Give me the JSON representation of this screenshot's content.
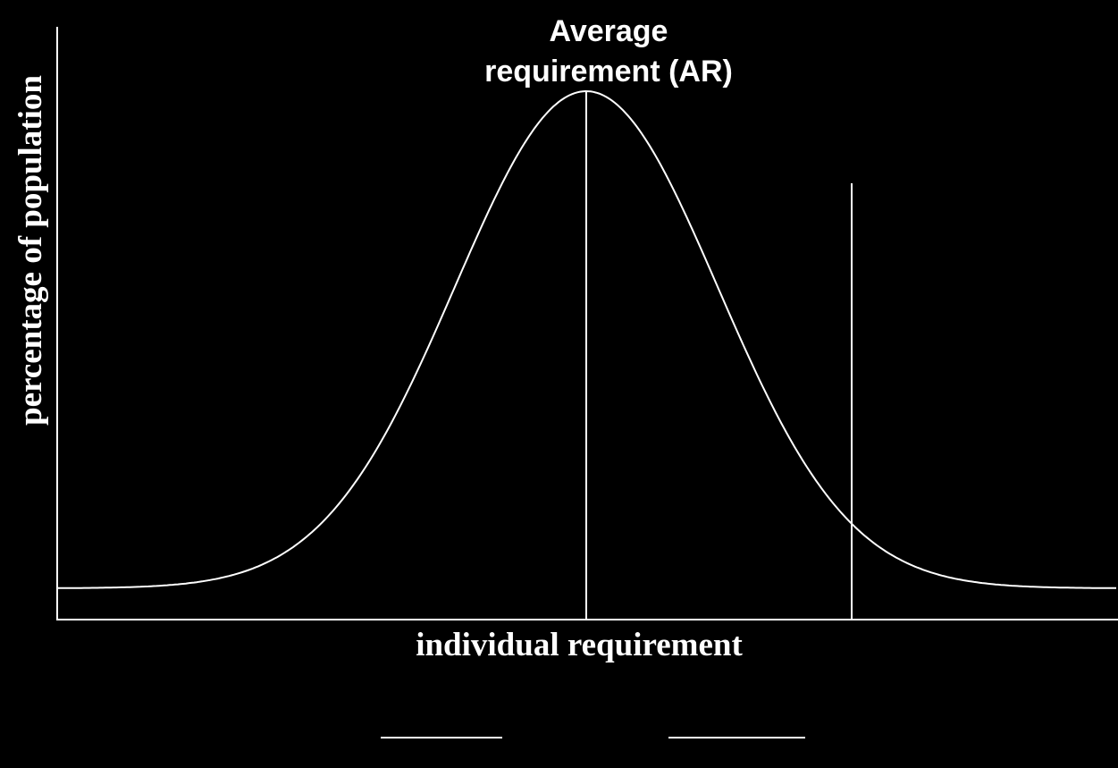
{
  "annotation": [
    "Average",
    "requirement (AR)"
  ],
  "x_axis_label": "individual requirement",
  "y_axis_label": "percentage of population"
}
